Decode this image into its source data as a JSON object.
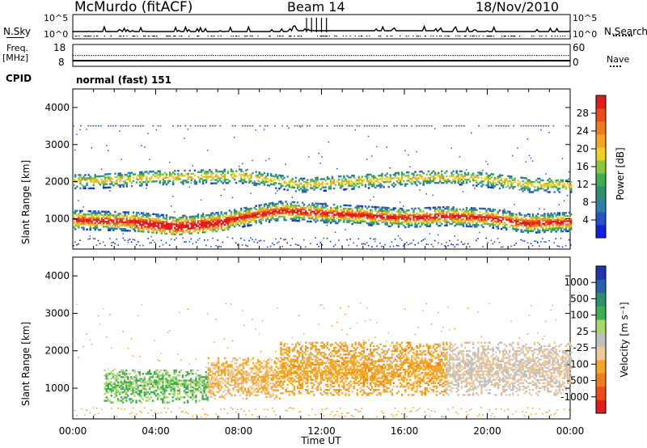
{
  "header": {
    "station": "McMurdo (fitACF)",
    "beam": "Beam 14",
    "date": "18/Nov/2010"
  },
  "top_panels": {
    "nsky_label": "N.Sky",
    "nsearch_label": "N.Search",
    "left_ticks": [
      "10^5",
      "10^0"
    ],
    "right_ticks": [
      "10^5",
      "10^0"
    ],
    "freq_label": "Freq.",
    "freq_unit": "[MHz]",
    "freq_ticks": [
      "18",
      "8"
    ],
    "nave_label": "Nave",
    "nave_ticks": [
      "60",
      "0"
    ],
    "cpid_label": "CPID",
    "cpid_value": "normal (fast) 151"
  },
  "colors": {
    "power_scale": [
      "#1020e0",
      "#2a52c8",
      "#2f7fa8",
      "#2f8f6a",
      "#3fae4f",
      "#8cc63f",
      "#f0d020",
      "#f5a623",
      "#f27b1d",
      "#ee4a16",
      "#e41a1c"
    ],
    "velocity_scale": [
      "#e41a1c",
      "#ee4a16",
      "#f27b1d",
      "#f5a623",
      "#f0c896",
      "#bfbfbf",
      "#a6d96a",
      "#3fae4f",
      "#2f8f6a",
      "#2a5faa",
      "#2036b0"
    ]
  },
  "chart_data": [
    {
      "type": "heatmap",
      "title": "",
      "xlabel": "Time UT",
      "ylabel": "Slant Range [km]",
      "x_ticks": [
        "00:00",
        "04:00",
        "08:00",
        "12:00",
        "16:00",
        "20:00",
        "00:00"
      ],
      "y_ticks": [
        "1000",
        "2000",
        "3000",
        "4000"
      ],
      "xlim": [
        0,
        24
      ],
      "ylim": [
        180,
        4500
      ],
      "colorbar": {
        "label": "Power [dB]",
        "ticks": [
          "4",
          "8",
          "12",
          "16",
          "20",
          "24",
          "28"
        ],
        "range": [
          0,
          30
        ]
      },
      "bands": [
        {
          "name": "main",
          "center": [
            [
              0,
              950
            ],
            [
              3,
              900
            ],
            [
              5,
              800
            ],
            [
              7,
              900
            ],
            [
              9,
              1100
            ],
            [
              10,
              1200
            ],
            [
              13,
              1100
            ],
            [
              16,
              1000
            ],
            [
              18,
              1050
            ],
            [
              20,
              1000
            ],
            [
              22,
              850
            ],
            [
              24,
              900
            ]
          ],
          "thickness": 500
        },
        {
          "name": "upper",
          "center": [
            [
              1,
              2000
            ],
            [
              4,
              2100
            ],
            [
              8,
              2150
            ],
            [
              11,
              1900
            ],
            [
              14,
              2000
            ],
            [
              17,
              2100
            ],
            [
              19,
              2100
            ],
            [
              22,
              1900
            ]
          ],
          "thickness": 400
        }
      ]
    },
    {
      "type": "heatmap",
      "title": "",
      "xlabel": "Time UT",
      "ylabel": "Slant Range [km]",
      "x_ticks": [
        "00:00",
        "04:00",
        "08:00",
        "12:00",
        "16:00",
        "20:00",
        "00:00"
      ],
      "y_ticks": [
        "1000",
        "2000",
        "3000",
        "4000"
      ],
      "xlim": [
        0,
        24
      ],
      "ylim": [
        180,
        4500
      ],
      "colorbar": {
        "label": "Velocity [m s⁻¹]",
        "ticks": [
          "-1000",
          "-500",
          "-100",
          "-25",
          "25",
          "100",
          "500",
          "1000"
        ],
        "range": [
          -1000,
          1000
        ]
      },
      "regions": [
        {
          "t": [
            1.5,
            6.5
          ],
          "r": [
            600,
            1500
          ],
          "velocity": 300
        },
        {
          "t": [
            6.5,
            10
          ],
          "r": [
            700,
            1800
          ],
          "velocity": -300
        },
        {
          "t": [
            10,
            18
          ],
          "r": [
            800,
            2200
          ],
          "velocity": -400
        },
        {
          "t": [
            18,
            24
          ],
          "r": [
            800,
            2200
          ],
          "velocity": -100
        }
      ]
    }
  ]
}
